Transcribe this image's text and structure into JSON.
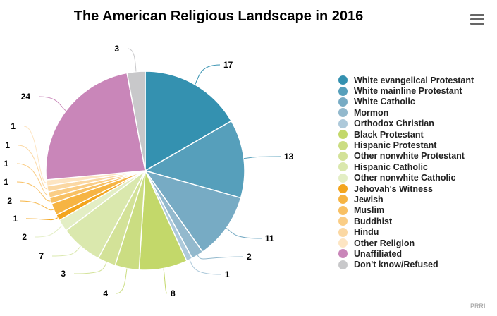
{
  "header": {
    "title": "The American Religious Landscape in 2016",
    "menu_icon": "hamburger-menu-icon"
  },
  "credit": "PRRI",
  "chart_data": {
    "type": "pie",
    "title": "The American Religious Landscape in 2016",
    "legend_position": "right",
    "slices": [
      {
        "name": "White evangelical Protestant",
        "value": 17,
        "color": "#3491b0"
      },
      {
        "name": "White mainline Protestant",
        "value": 13,
        "color": "#569fbb"
      },
      {
        "name": "White Catholic",
        "value": 11,
        "color": "#77abc4"
      },
      {
        "name": "Mormon",
        "value": 2,
        "color": "#93b9cd"
      },
      {
        "name": "Orthodox Christian",
        "value": 1,
        "color": "#adc9da"
      },
      {
        "name": "Black Protestant",
        "value": 8,
        "color": "#c3d86a"
      },
      {
        "name": "Hispanic Protestant",
        "value": 4,
        "color": "#cbdd82"
      },
      {
        "name": "Other nonwhite Protestant",
        "value": 3,
        "color": "#d3e298"
      },
      {
        "name": "Hispanic Catholic",
        "value": 7,
        "color": "#dae8ad"
      },
      {
        "name": "Other nonwhite Catholic",
        "value": 2,
        "color": "#e3eec4"
      },
      {
        "name": "Jehovah's Witness",
        "value": 1,
        "color": "#f3a51e"
      },
      {
        "name": "Jewish",
        "value": 2,
        "color": "#f6b443"
      },
      {
        "name": "Muslim",
        "value": 1,
        "color": "#f8c063"
      },
      {
        "name": "Buddhist",
        "value": 1,
        "color": "#facd85"
      },
      {
        "name": "Hindu",
        "value": 1,
        "color": "#fbd8a3"
      },
      {
        "name": "Other Religion",
        "value": 1,
        "color": "#fde5c2"
      },
      {
        "name": "Unaffiliated",
        "value": 24,
        "color": "#c986b9"
      },
      {
        "name": "Don't know/Refused",
        "value": 3,
        "color": "#c8c8ca"
      }
    ]
  }
}
